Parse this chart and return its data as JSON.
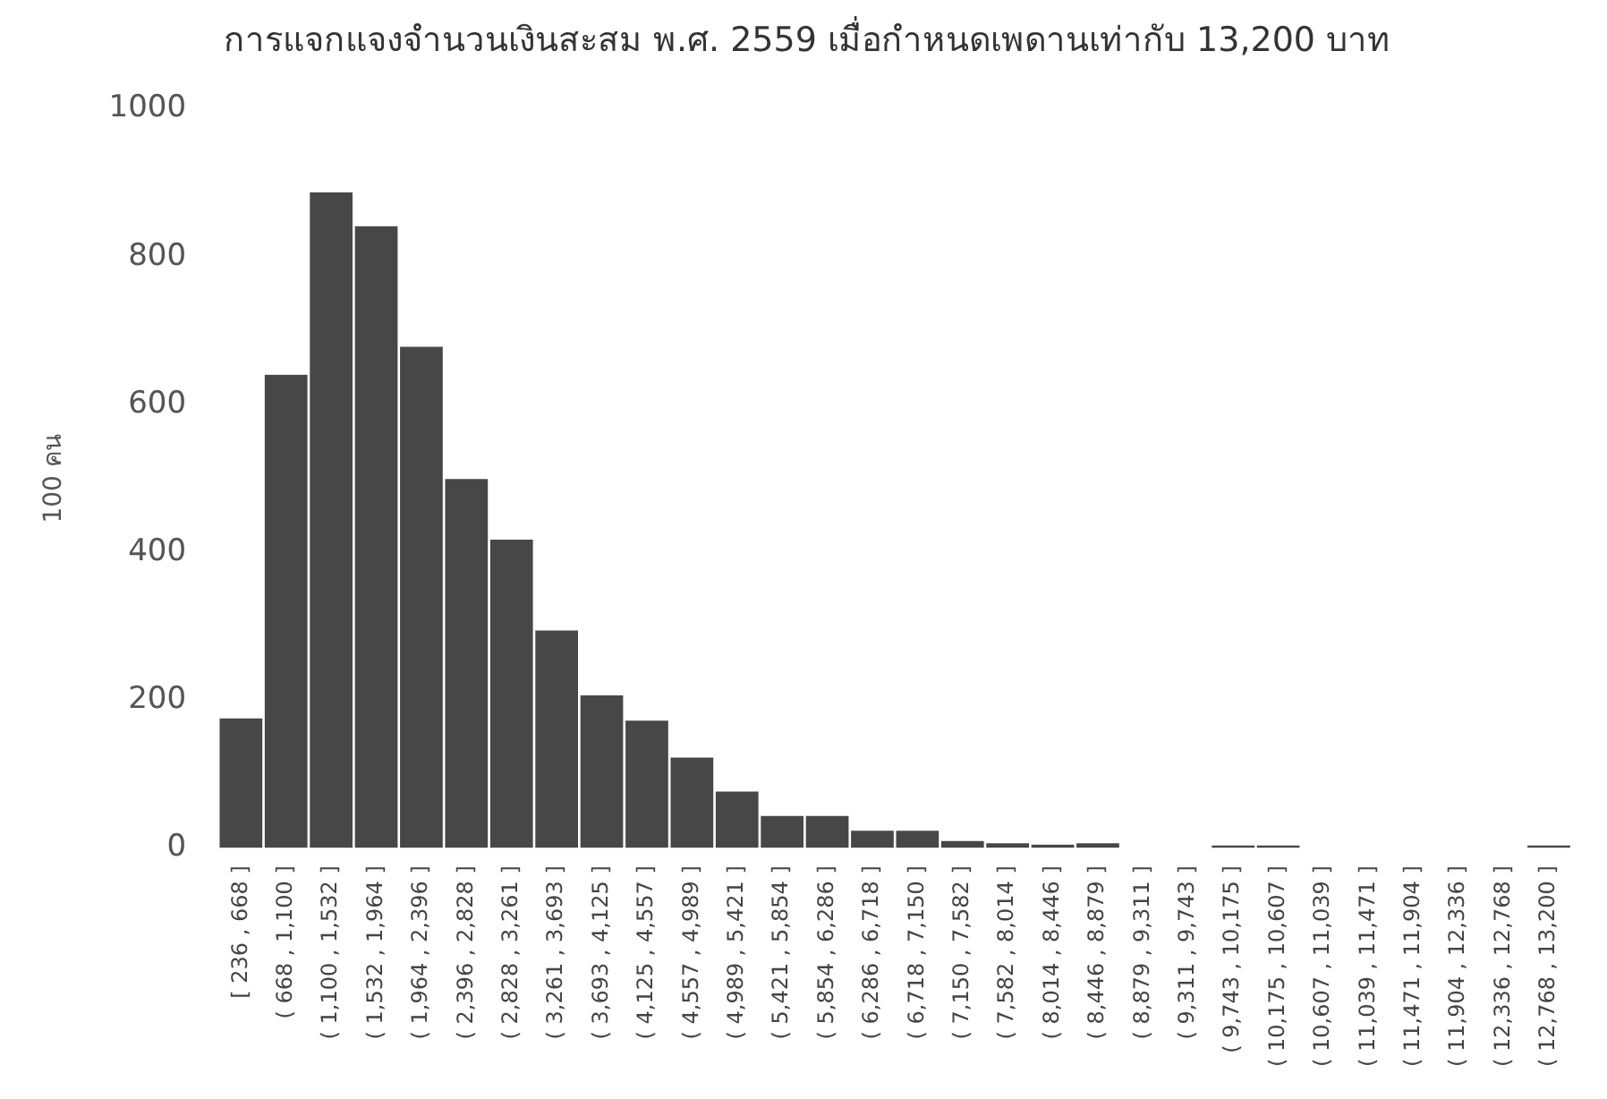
{
  "chart_data": {
    "type": "bar",
    "title": "การแจกแจงจำนวนเงินสะสม พ.ศ. 2559 เมื่อกำหนดเพดานเท่ากับ 13,200 บาท",
    "ylabel": "100 คน",
    "categories": [
      "[ 236 , 668 ]",
      "( 668 , 1,100 ]",
      "( 1,100 , 1,532 ]",
      "( 1,532 , 1,964 ]",
      "( 1,964 , 2,396 ]",
      "( 2,396 , 2,828 ]",
      "( 2,828 , 3,261 ]",
      "( 3,261 , 3,693 ]",
      "( 3,693 , 4,125 ]",
      "( 4,125 , 4,557 ]",
      "( 4,557 , 4,989 ]",
      "( 4,989 , 5,421 ]",
      "( 5,421 , 5,854 ]",
      "( 5,854 , 6,286 ]",
      "( 6,286 , 6,718 ]",
      "( 6,718 , 7,150 ]",
      "( 7,150 , 7,582 ]",
      "( 7,582 , 8,014 ]",
      "( 8,014 , 8,446 ]",
      "( 8,446 , 8,879 ]",
      "( 8,879 , 9,311 ]",
      "( 9,311 , 9,743 ]",
      "( 9,743 , 10,175 ]",
      "( 10,175 , 10,607 ]",
      "( 10,607 , 11,039 ]",
      "( 11,039 , 11,471 ]",
      "( 11,471 , 11,904 ]",
      "( 11,904 , 12,336 ]",
      "( 12,336 , 12,768 ]",
      "( 12,768 , 13,200 ]"
    ],
    "values": [
      175,
      640,
      887,
      841,
      678,
      499,
      417,
      294,
      206,
      172,
      122,
      76,
      43,
      43,
      23,
      23,
      9,
      6,
      4,
      6,
      0,
      0,
      3,
      3,
      0,
      0,
      0,
      0,
      0,
      3
    ],
    "color": "#474747",
    "ylim": [
      0,
      1000
    ],
    "yticks": [
      0,
      200,
      400,
      600,
      800,
      1000
    ],
    "grid": false,
    "legend": false
  }
}
